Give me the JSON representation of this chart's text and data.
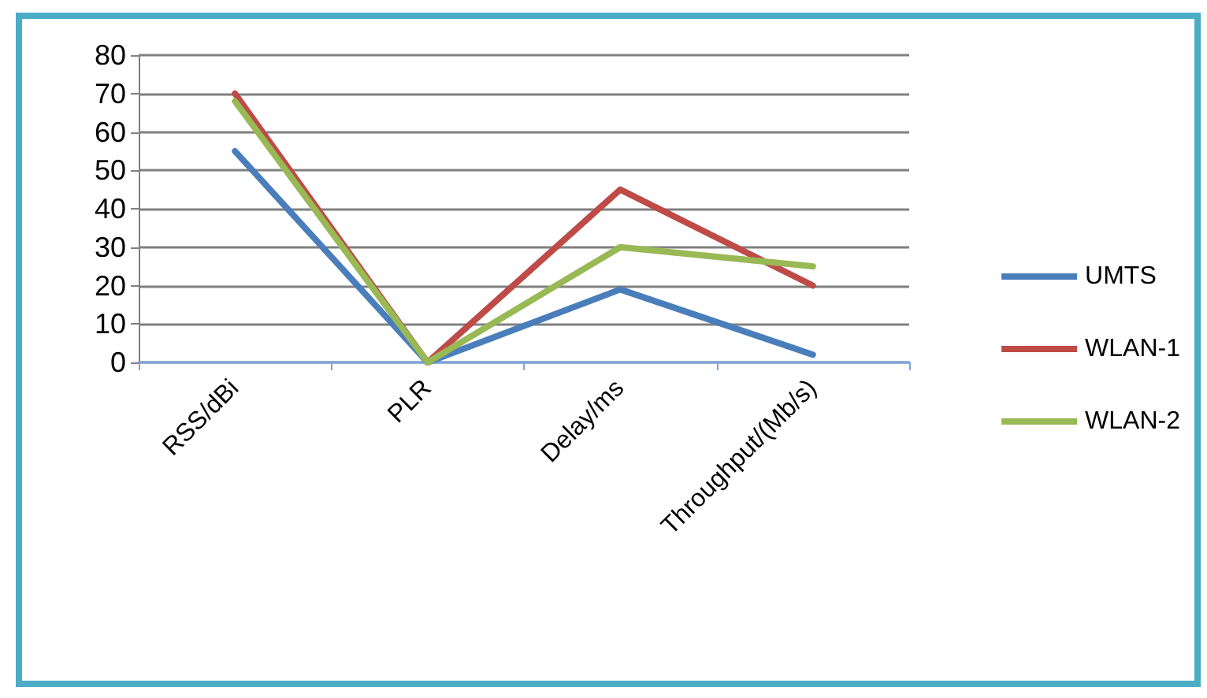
{
  "chart_data": {
    "type": "line",
    "categories": [
      "RSS/dBi",
      "PLR",
      "Delay/ms",
      "Throughput/(Mb/s)"
    ],
    "series": [
      {
        "name": "UMTS",
        "color": "#4a7ebb",
        "values": [
          55,
          0,
          19,
          2
        ]
      },
      {
        "name": "WLAN-1",
        "color": "#be4b48",
        "values": [
          70,
          0,
          45,
          20
        ]
      },
      {
        "name": "WLAN-2",
        "color": "#98b954",
        "values": [
          68,
          0,
          30,
          25
        ]
      }
    ],
    "ylim": [
      0,
      80
    ],
    "yticks": [
      0,
      10,
      20,
      30,
      40,
      50,
      60,
      70,
      80
    ],
    "grid": "y",
    "legend": "right",
    "marker": "none",
    "line_style": "solid"
  }
}
